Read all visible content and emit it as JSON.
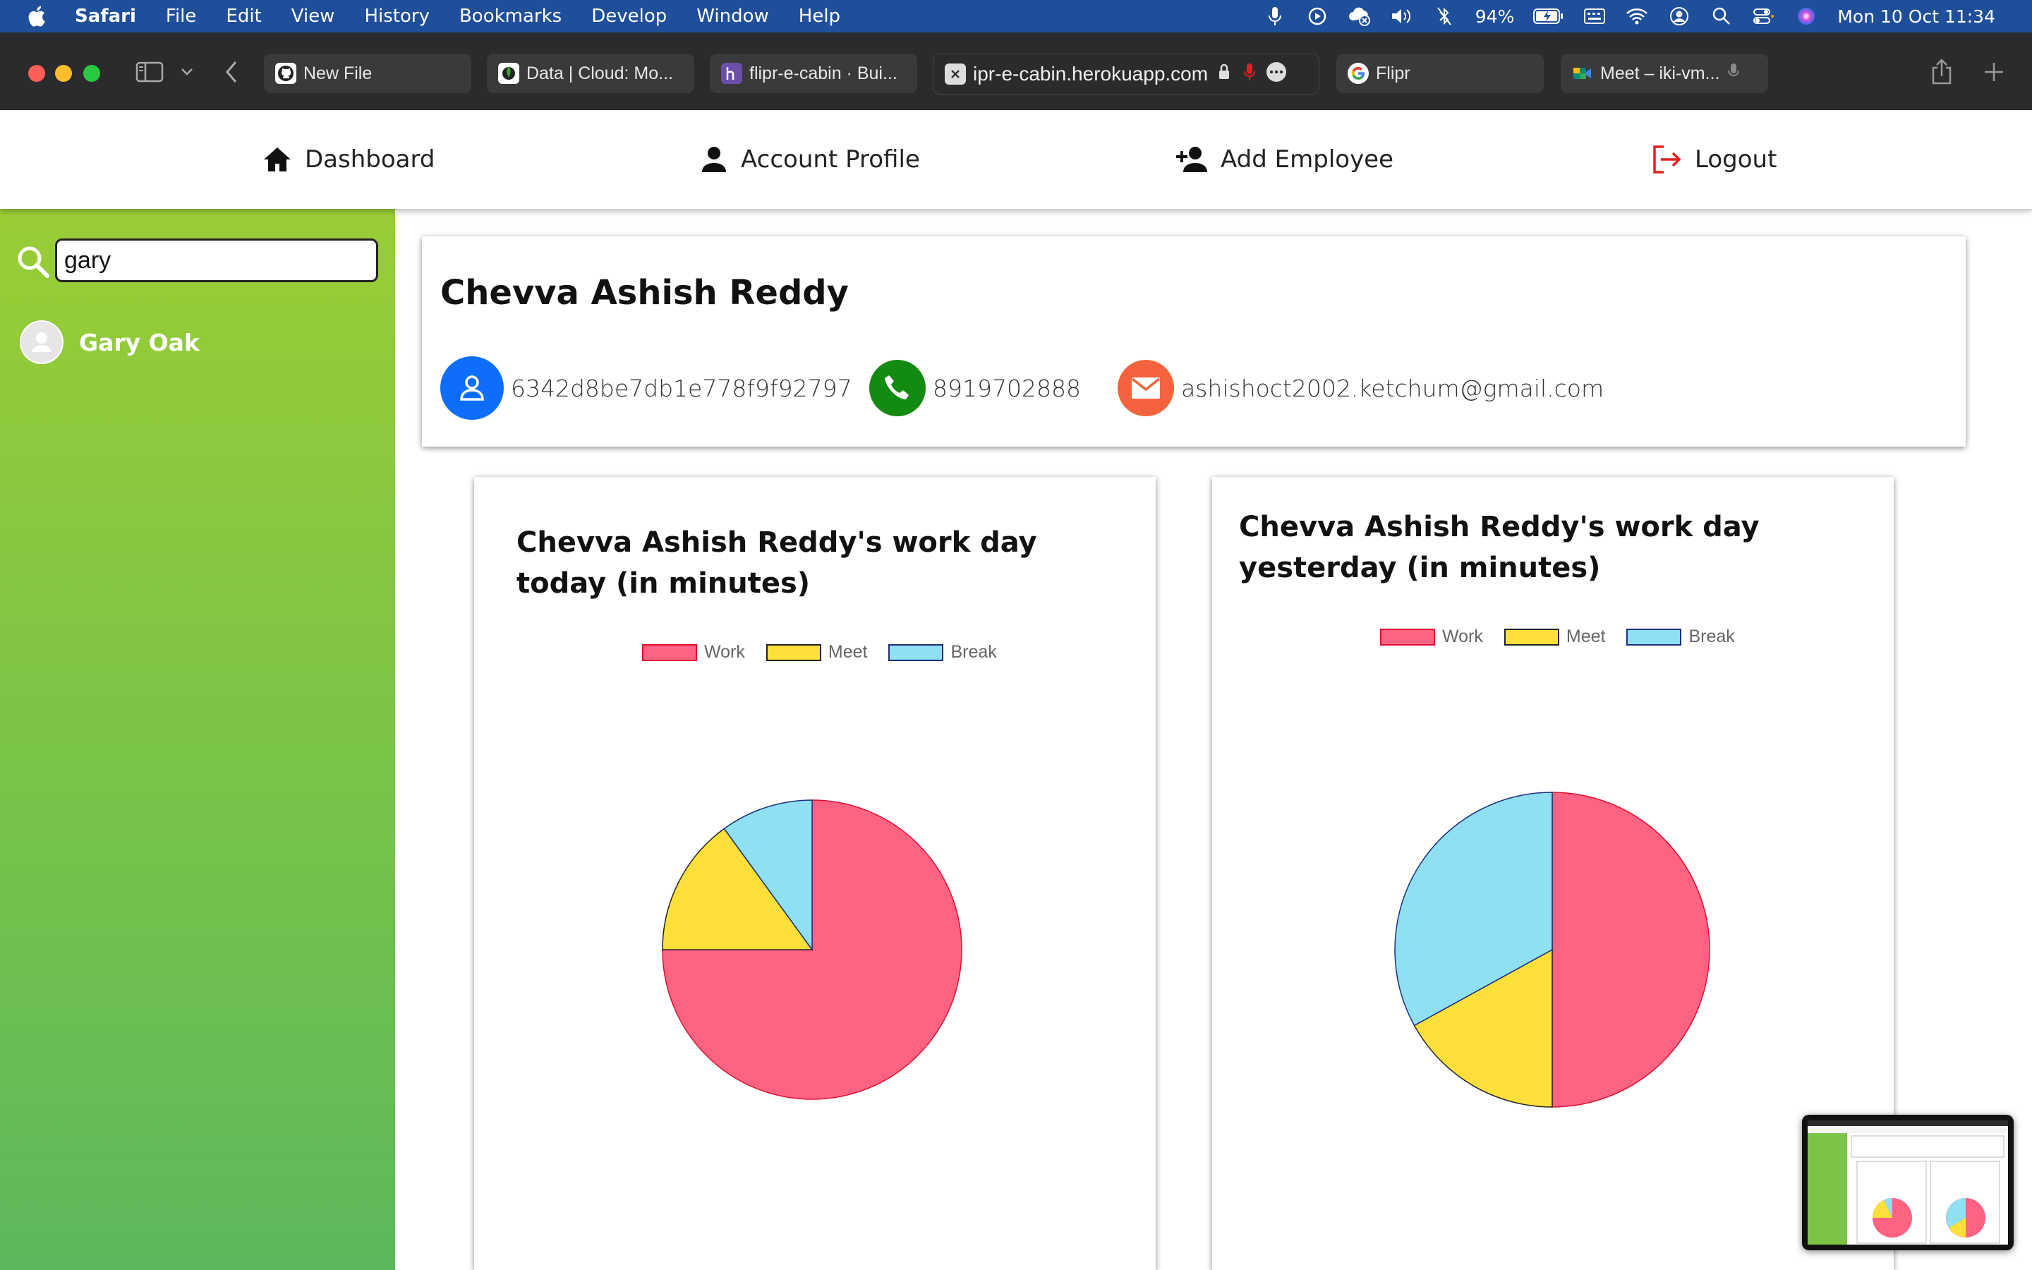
{
  "menubar": {
    "app_name": "Safari",
    "items": [
      "File",
      "Edit",
      "View",
      "History",
      "Bookmarks",
      "Develop",
      "Window",
      "Help"
    ],
    "battery": "94%",
    "datetime": "Mon 10 Oct  11:34"
  },
  "tabs": [
    {
      "label": "New File",
      "icon": "github-icon"
    },
    {
      "label": "Data | Cloud: Mo...",
      "icon": "mongodb-icon"
    },
    {
      "label": "flipr-e-cabin · Bui...",
      "icon": "heroku-icon"
    },
    {
      "label": "ipr-e-cabin.herokuapp.com",
      "icon": "close-icon",
      "active": true
    },
    {
      "label": "Flipr",
      "icon": "google-icon"
    },
    {
      "label": "Meet – iki-vm...",
      "icon": "meet-icon"
    }
  ],
  "nav": {
    "dashboard": "Dashboard",
    "account_profile": "Account Profile",
    "add_employee": "Add Employee",
    "logout": "Logout"
  },
  "search": {
    "value": "gary",
    "placeholder": ""
  },
  "results": [
    {
      "name": "Gary Oak"
    }
  ],
  "profile": {
    "name": "Chevva Ashish Reddy",
    "id": "6342d8be7db1e778f9f92797",
    "phone": "8919702888",
    "email": "ashishoct2002.ketchum@gmail.com"
  },
  "colors": {
    "work": "#ff6384",
    "meet": "#ffe03a",
    "break": "#8ee0f2",
    "id_icon_bg": "#0d6efd",
    "phone_icon_bg": "#138a11",
    "email_icon_bg": "#f4633d",
    "logout": "#e02020"
  },
  "chart_data": [
    {
      "type": "pie",
      "title": "Chevva Ashish Reddy's work day today (in minutes)",
      "categories": [
        "Work",
        "Meet",
        "Break"
      ],
      "values": [
        75,
        15,
        10
      ]
    },
    {
      "type": "pie",
      "title": "Chevva Ashish Reddy's work day yesterday (in minutes)",
      "categories": [
        "Work",
        "Meet",
        "Break"
      ],
      "values": [
        50,
        17,
        33
      ]
    }
  ]
}
